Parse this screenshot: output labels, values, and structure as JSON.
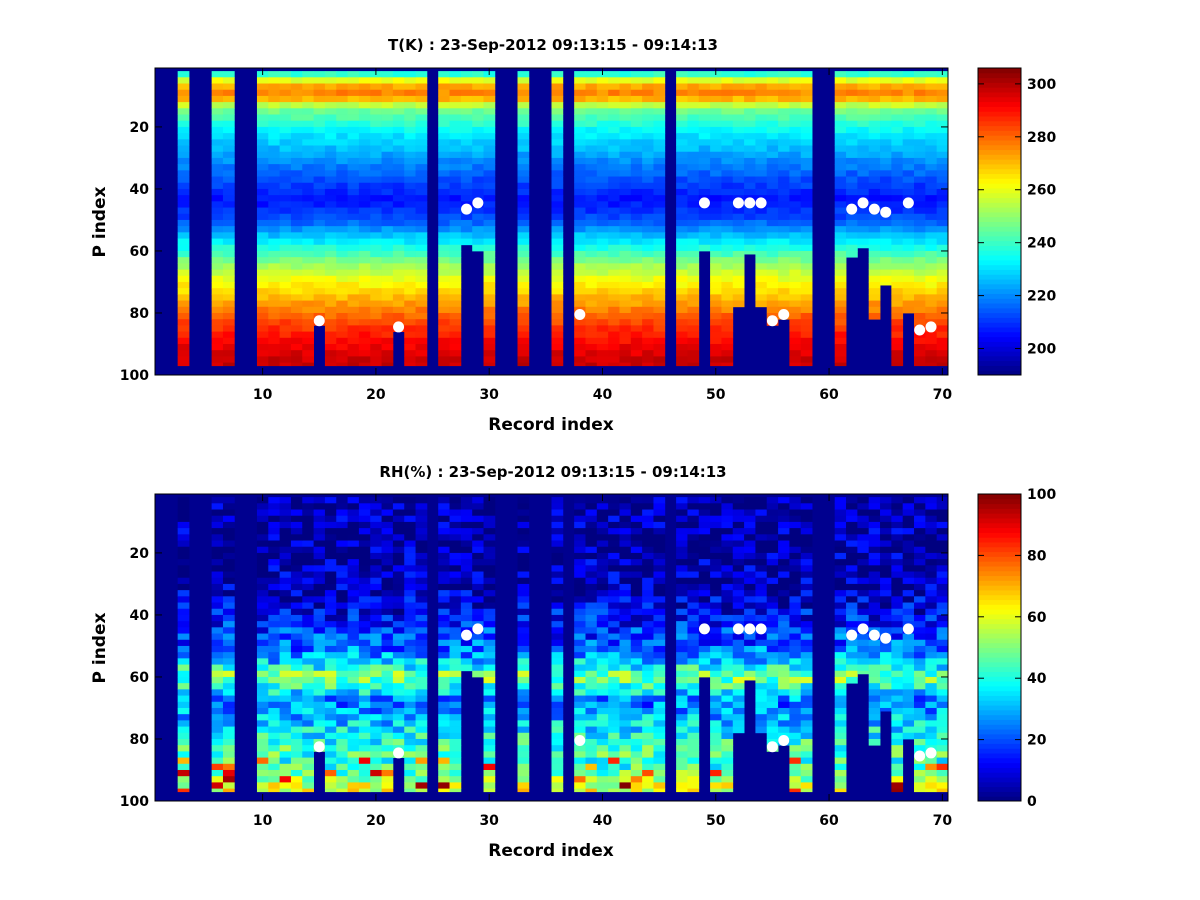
{
  "chart_data": [
    {
      "type": "heatmap",
      "title": "T(K) : 23-Sep-2012 09:13:15 - 09:14:13",
      "xlabel": "Record index",
      "ylabel": "P index",
      "xlim": [
        0.5,
        70.5
      ],
      "ylim": [
        1,
        100
      ],
      "xticks": [
        10,
        20,
        30,
        40,
        50,
        60,
        70
      ],
      "yticks": [
        20,
        40,
        60,
        80,
        100
      ],
      "colorbar": {
        "min": 190,
        "max": 306,
        "ticks": [
          200,
          220,
          240,
          260,
          280,
          300
        ]
      },
      "masked_records": [
        1,
        2,
        4,
        5,
        8,
        9,
        25,
        31,
        32,
        34,
        35,
        37,
        46,
        59,
        60
      ],
      "data_top_p": [
        2,
        2,
        2,
        2,
        2,
        2,
        2,
        2,
        2,
        2,
        2,
        2,
        2,
        2,
        2,
        2,
        2,
        2,
        2,
        2,
        2,
        2,
        2,
        2,
        2,
        2,
        2,
        2,
        2,
        2,
        2,
        2,
        2,
        2,
        2,
        2,
        2,
        2,
        2,
        2,
        2,
        2,
        2,
        2,
        2,
        2,
        2,
        2,
        2,
        2,
        2,
        2,
        2,
        2,
        2,
        2,
        2,
        2,
        2,
        2,
        2,
        2,
        2,
        2,
        2,
        2,
        2,
        2,
        2,
        2
      ],
      "data_bottom_p": [
        0,
        0,
        97,
        0,
        0,
        97,
        97,
        0,
        0,
        97,
        97,
        97,
        97,
        97,
        84,
        97,
        97,
        97,
        97,
        97,
        97,
        86,
        97,
        97,
        0,
        97,
        97,
        58,
        60,
        97,
        0,
        0,
        97,
        0,
        0,
        97,
        0,
        97,
        97,
        97,
        97,
        97,
        97,
        97,
        97,
        0,
        97,
        97,
        60,
        97,
        97,
        78,
        61,
        78,
        84,
        82,
        97,
        97,
        0,
        0,
        97,
        62,
        59,
        82,
        71,
        97,
        80,
        97,
        97,
        97
      ],
      "markers": [
        {
          "record": 15,
          "p": 82.5
        },
        {
          "record": 22,
          "p": 84.5
        },
        {
          "record": 28,
          "p": 46.5
        },
        {
          "record": 29,
          "p": 44.5
        },
        {
          "record": 38,
          "p": 80.5
        },
        {
          "record": 49,
          "p": 44.5
        },
        {
          "record": 52,
          "p": 44.5
        },
        {
          "record": 53,
          "p": 44.5
        },
        {
          "record": 54,
          "p": 44.5
        },
        {
          "record": 55,
          "p": 82.5
        },
        {
          "record": 56,
          "p": 80.5
        },
        {
          "record": 62,
          "p": 46.5
        },
        {
          "record": 63,
          "p": 44.5
        },
        {
          "record": 64,
          "p": 46.5
        },
        {
          "record": 65,
          "p": 47.5
        },
        {
          "record": 67,
          "p": 44.5
        },
        {
          "record": 68,
          "p": 85.5
        },
        {
          "record": 69,
          "p": 84.5
        }
      ],
      "profile_levels": [
        2,
        6,
        10,
        14,
        22,
        30,
        38,
        44,
        50,
        58,
        64,
        70,
        76,
        82,
        88,
        94,
        97
      ],
      "profile_values": [
        228,
        270,
        278,
        248,
        232,
        222,
        212,
        206,
        214,
        234,
        250,
        262,
        272,
        282,
        290,
        296,
        298
      ]
    },
    {
      "type": "heatmap",
      "title": "RH(%) : 23-Sep-2012 09:13:15 - 09:14:13",
      "xlabel": "Record index",
      "ylabel": "P index",
      "xlim": [
        0.5,
        70.5
      ],
      "ylim": [
        1,
        100
      ],
      "xticks": [
        10,
        20,
        30,
        40,
        50,
        60,
        70
      ],
      "yticks": [
        20,
        40,
        60,
        80,
        100
      ],
      "colorbar": {
        "min": 0,
        "max": 100,
        "ticks": [
          0,
          20,
          40,
          60,
          80,
          100
        ]
      },
      "masked_records": [
        1,
        2,
        4,
        5,
        8,
        9,
        25,
        31,
        32,
        34,
        35,
        37,
        46,
        59,
        60
      ],
      "data_top_p": [
        2,
        2,
        2,
        2,
        2,
        2,
        2,
        2,
        2,
        2,
        2,
        2,
        2,
        2,
        2,
        2,
        2,
        2,
        2,
        2,
        2,
        2,
        2,
        2,
        2,
        2,
        2,
        2,
        2,
        2,
        2,
        2,
        2,
        2,
        2,
        2,
        2,
        2,
        2,
        2,
        2,
        2,
        2,
        2,
        2,
        2,
        2,
        2,
        2,
        2,
        2,
        2,
        2,
        2,
        2,
        2,
        2,
        2,
        2,
        2,
        2,
        2,
        2,
        2,
        2,
        2,
        2,
        2,
        2,
        2
      ],
      "data_bottom_p": [
        0,
        0,
        97,
        0,
        0,
        97,
        97,
        0,
        0,
        97,
        97,
        97,
        97,
        97,
        84,
        97,
        97,
        97,
        97,
        97,
        97,
        86,
        97,
        97,
        0,
        97,
        97,
        58,
        60,
        97,
        0,
        0,
        97,
        0,
        0,
        97,
        0,
        97,
        97,
        97,
        97,
        97,
        97,
        97,
        97,
        0,
        97,
        97,
        60,
        97,
        97,
        78,
        61,
        78,
        84,
        82,
        97,
        97,
        0,
        0,
        97,
        62,
        59,
        82,
        71,
        97,
        80,
        97,
        97,
        97
      ],
      "markers": [
        {
          "record": 15,
          "p": 82.5
        },
        {
          "record": 22,
          "p": 84.5
        },
        {
          "record": 28,
          "p": 46.5
        },
        {
          "record": 29,
          "p": 44.5
        },
        {
          "record": 38,
          "p": 80.5
        },
        {
          "record": 49,
          "p": 44.5
        },
        {
          "record": 52,
          "p": 44.5
        },
        {
          "record": 53,
          "p": 44.5
        },
        {
          "record": 54,
          "p": 44.5
        },
        {
          "record": 55,
          "p": 82.5
        },
        {
          "record": 56,
          "p": 80.5
        },
        {
          "record": 62,
          "p": 46.5
        },
        {
          "record": 63,
          "p": 44.5
        },
        {
          "record": 64,
          "p": 46.5
        },
        {
          "record": 65,
          "p": 47.5
        },
        {
          "record": 67,
          "p": 44.5
        },
        {
          "record": 68,
          "p": 85.5
        },
        {
          "record": 69,
          "p": 84.5
        }
      ],
      "profile_levels": [
        2,
        30,
        38,
        44,
        50,
        56,
        60,
        64,
        68,
        72,
        76,
        80,
        84,
        88,
        92,
        96
      ],
      "profile_values": [
        3,
        5,
        10,
        16,
        22,
        34,
        52,
        38,
        22,
        30,
        34,
        40,
        44,
        42,
        48,
        60
      ]
    }
  ]
}
